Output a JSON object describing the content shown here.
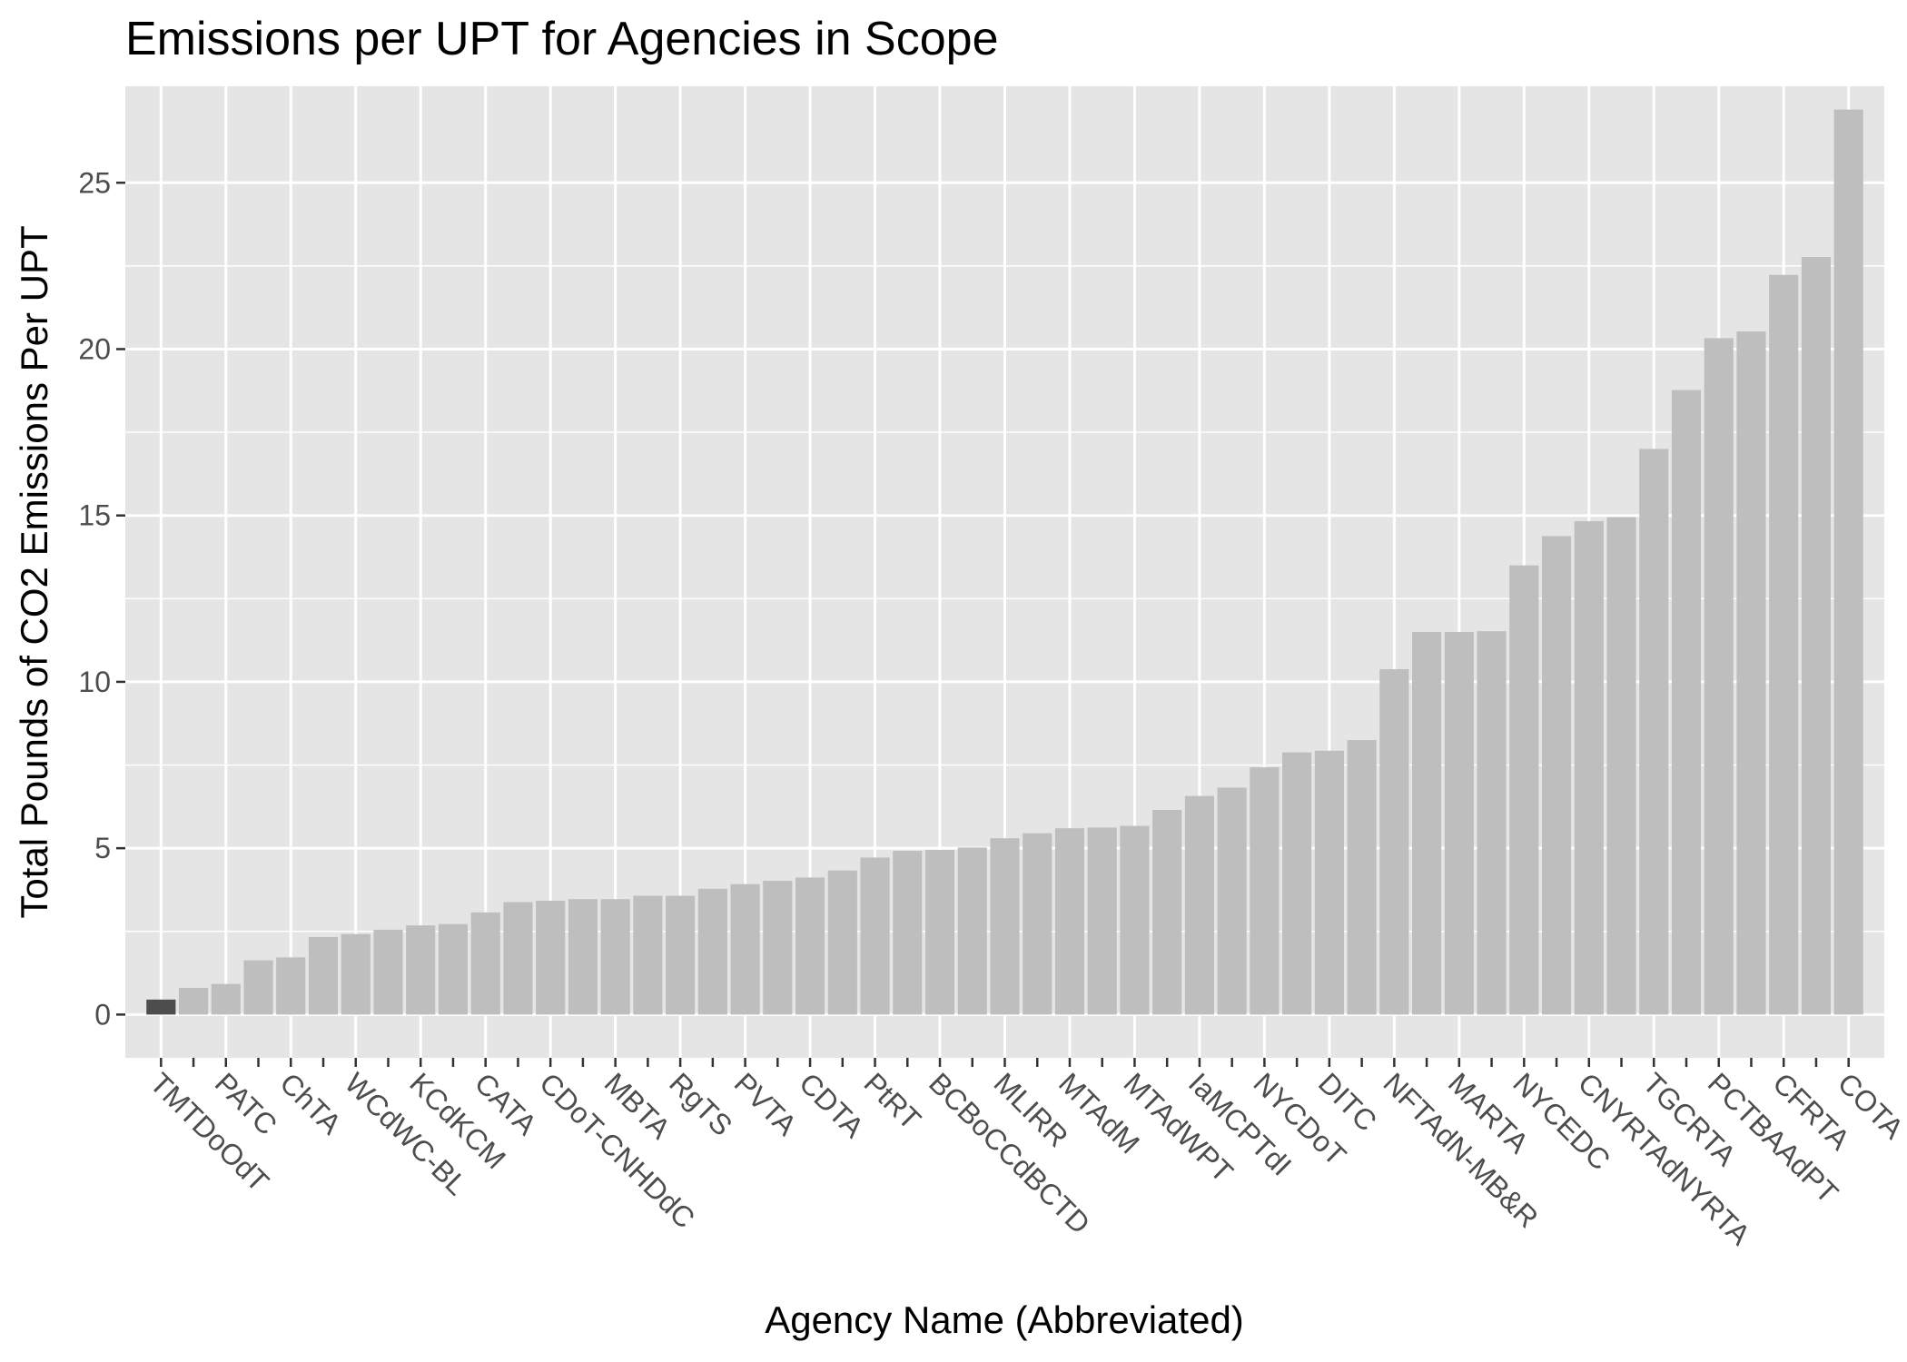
{
  "chart_data": {
    "type": "bar",
    "title": "Emissions per UPT for Agencies in Scope",
    "xlabel": "Agency Name (Abbreviated)",
    "ylabel": "Total Pounds of CO2 Emissions Per UPT",
    "ylim": [
      -1.3,
      27.9
    ],
    "yticks": [
      0,
      5,
      10,
      15,
      20,
      25
    ],
    "grid": true,
    "legend": "none",
    "colors": {
      "panel": "#e5e5e5",
      "grid": "#ffffff",
      "bar": "#bebebe",
      "highlight_bar": "#4d4d4d",
      "text": "#4d4d4d",
      "title": "#000000"
    },
    "highlight_index": 0,
    "categories": [
      "TMTDoOdT",
      "",
      "PATC",
      "",
      "ChTA",
      "",
      "WCdWC-BL",
      "",
      "KCdKCM",
      "",
      "CATA",
      "",
      "CDoT-CNHDdC",
      "",
      "MBTA",
      "",
      "RgTS",
      "",
      "PVTA",
      "",
      "CDTA",
      "",
      "PtRT",
      "",
      "BCBoCCdBCTD",
      "",
      "MLIRR",
      "",
      "MTAdM",
      "",
      "MTAdWPT",
      "",
      "IaMCPTdI",
      "",
      "NYCDoT",
      "",
      "DITC",
      "",
      "NFTAdN-MB&R",
      "",
      "MARTA",
      "",
      "NYCEDC",
      "",
      "CNYRTAdNYRTA",
      "",
      "TGCRTA",
      "",
      "PCTBAAdPT",
      "",
      "CFRTA",
      "",
      "COTA"
    ],
    "values": [
      0.45,
      0.8,
      0.92,
      1.63,
      1.72,
      2.33,
      2.42,
      2.55,
      2.68,
      2.72,
      3.07,
      3.38,
      3.42,
      3.47,
      3.47,
      3.57,
      3.57,
      3.78,
      3.92,
      4.02,
      4.12,
      4.33,
      4.72,
      4.92,
      4.95,
      5.02,
      5.3,
      5.45,
      5.6,
      5.62,
      5.67,
      6.15,
      6.57,
      6.82,
      7.43,
      7.88,
      7.93,
      8.25,
      10.38,
      11.5,
      11.5,
      11.52,
      13.5,
      14.38,
      14.83,
      14.95,
      17.0,
      18.77,
      20.33,
      20.53,
      22.23,
      22.77,
      27.2
    ]
  }
}
